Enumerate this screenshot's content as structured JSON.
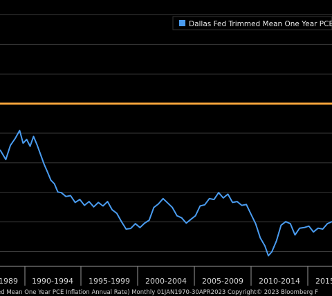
{
  "chart_data": {
    "type": "line",
    "title": "",
    "xlabel": "",
    "ylabel": "",
    "legend": {
      "placement": "top-right",
      "entries": [
        {
          "name": "Dallas Fed Trimmed Mean One Year PCE",
          "color": "#4a9cf0"
        }
      ]
    },
    "x_tick_labels": [
      "1989",
      "1990-1994",
      "1995-1999",
      "2000-2004",
      "2005-2009",
      "2010-2014",
      "2015"
    ],
    "grid": true,
    "series": [
      {
        "name": "Dallas Fed Trimmed Mean One Year PCE",
        "color": "#4a9cf0",
        "x": [
          1987.3,
          1987.8,
          1988.2,
          1988.6,
          1989.0,
          1989.3,
          1989.6,
          1989.9,
          1990.2,
          1990.5,
          1990.8,
          1991.1,
          1991.4,
          1991.7,
          1992.0,
          1992.3,
          1992.6,
          1993.0,
          1993.4,
          1993.8,
          1994.2,
          1994.6,
          1995.0,
          1995.4,
          1995.8,
          1996.2,
          1996.6,
          1997.0,
          1997.4,
          1997.8,
          1998.2,
          1998.6,
          1999.0,
          1999.4,
          1999.8,
          2000.2,
          2000.6,
          2001.0,
          2001.4,
          2001.8,
          2002.2,
          2002.6,
          2003.0,
          2003.4,
          2003.8,
          2004.2,
          2004.6,
          2005.0,
          2005.4,
          2005.8,
          2006.2,
          2006.6,
          2007.0,
          2007.4,
          2007.8,
          2008.2,
          2008.6,
          2009.0,
          2009.4,
          2009.8,
          2010.2,
          2010.5,
          2010.8,
          2011.2,
          2011.6,
          2012.0,
          2012.4,
          2012.8,
          2013.2,
          2013.6,
          2014.0,
          2014.4,
          2014.8,
          2015.2,
          2015.6,
          2016.0
        ],
        "values": [
          3.4,
          3.15,
          3.55,
          3.85,
          4.05,
          3.7,
          3.75,
          3.6,
          3.85,
          3.65,
          3.25,
          3.0,
          2.65,
          2.45,
          2.25,
          2.05,
          1.95,
          1.9,
          1.85,
          1.7,
          1.72,
          1.6,
          1.65,
          1.55,
          1.62,
          1.58,
          1.65,
          1.45,
          1.25,
          1.05,
          0.72,
          0.82,
          0.9,
          0.85,
          0.92,
          1.1,
          1.45,
          1.65,
          1.75,
          1.68,
          1.45,
          1.25,
          1.1,
          1.0,
          1.05,
          1.25,
          1.5,
          1.62,
          1.75,
          1.8,
          1.95,
          1.85,
          1.9,
          1.7,
          1.65,
          1.6,
          1.55,
          1.3,
          0.9,
          0.5,
          0.15,
          -0.1,
          -0.05,
          0.4,
          0.85,
          1.05,
          0.9,
          0.6,
          0.75,
          0.85,
          0.82,
          0.7,
          0.75,
          0.8,
          0.9,
          1.05
        ]
      }
    ],
    "reference_line": {
      "value": 5.0,
      "color": "#f7a23b"
    },
    "xlim": [
      1987.3,
      2016.0
    ],
    "ylim": [
      -0.5,
      8.5
    ],
    "y_gridlines": [
      0,
      1,
      2,
      3,
      4,
      5,
      6,
      7,
      8
    ]
  },
  "footer": {
    "text": "ed Mean One Year PCE Inflation Annual Rate)  Monthly 01JAN1970-30APR2023  Copyright© 2023 Bloomberg F"
  }
}
